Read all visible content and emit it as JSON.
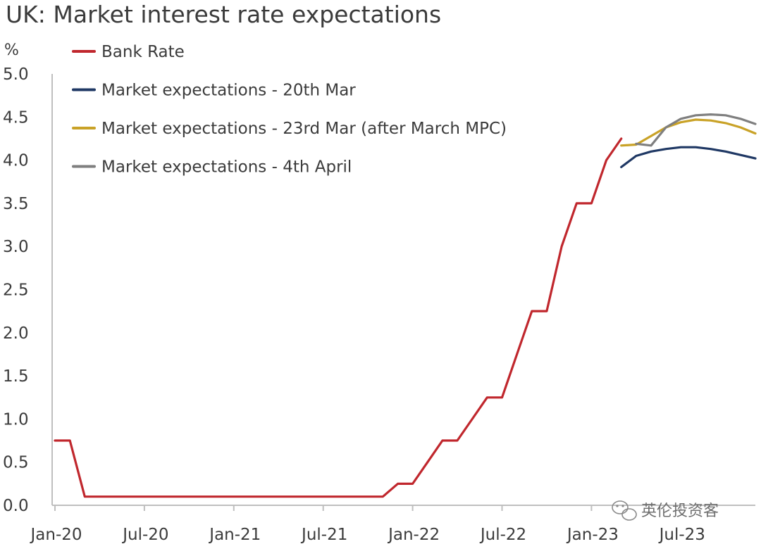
{
  "chart_data": {
    "type": "line",
    "title": "UK: Market interest rate expectations",
    "ylabel": "%",
    "xlabel": "",
    "ylim": [
      0,
      5
    ],
    "y_ticks": [
      "0.0",
      "0.5",
      "1.0",
      "1.5",
      "2.0",
      "2.5",
      "3.0",
      "3.5",
      "4.0",
      "4.5",
      "5.0"
    ],
    "x_ticks": [
      "Jan-20",
      "Jul-20",
      "Jan-21",
      "Jul-21",
      "Jan-22",
      "Jul-22",
      "Jan-23",
      "Jul-23"
    ],
    "grid": false,
    "legend_position": "top-left",
    "series": [
      {
        "name": "Bank Rate",
        "color": "#c0272d",
        "points": [
          [
            "2020-01",
            0.75
          ],
          [
            "2020-02",
            0.75
          ],
          [
            "2020-03",
            0.1
          ],
          [
            "2020-04",
            0.1
          ],
          [
            "2020-05",
            0.1
          ],
          [
            "2020-06",
            0.1
          ],
          [
            "2020-07",
            0.1
          ],
          [
            "2020-08",
            0.1
          ],
          [
            "2020-09",
            0.1
          ],
          [
            "2020-10",
            0.1
          ],
          [
            "2020-11",
            0.1
          ],
          [
            "2020-12",
            0.1
          ],
          [
            "2021-01",
            0.1
          ],
          [
            "2021-02",
            0.1
          ],
          [
            "2021-03",
            0.1
          ],
          [
            "2021-04",
            0.1
          ],
          [
            "2021-05",
            0.1
          ],
          [
            "2021-06",
            0.1
          ],
          [
            "2021-07",
            0.1
          ],
          [
            "2021-08",
            0.1
          ],
          [
            "2021-09",
            0.1
          ],
          [
            "2021-10",
            0.1
          ],
          [
            "2021-11",
            0.1
          ],
          [
            "2021-12",
            0.25
          ],
          [
            "2022-01",
            0.25
          ],
          [
            "2022-02",
            0.5
          ],
          [
            "2022-03",
            0.75
          ],
          [
            "2022-04",
            0.75
          ],
          [
            "2022-05",
            1.0
          ],
          [
            "2022-06",
            1.25
          ],
          [
            "2022-07",
            1.25
          ],
          [
            "2022-08",
            1.75
          ],
          [
            "2022-09",
            2.25
          ],
          [
            "2022-10",
            2.25
          ],
          [
            "2022-11",
            3.0
          ],
          [
            "2022-12",
            3.5
          ],
          [
            "2023-01",
            3.5
          ],
          [
            "2023-02",
            4.0
          ],
          [
            "2023-03",
            4.25
          ]
        ]
      },
      {
        "name": "Market expectations - 20th Mar",
        "color": "#1f3864",
        "points": [
          [
            "2023-03",
            3.92
          ],
          [
            "2023-04",
            4.05
          ],
          [
            "2023-05",
            4.1
          ],
          [
            "2023-06",
            4.13
          ],
          [
            "2023-07",
            4.15
          ],
          [
            "2023-08",
            4.15
          ],
          [
            "2023-09",
            4.13
          ],
          [
            "2023-10",
            4.1
          ],
          [
            "2023-11",
            4.06
          ],
          [
            "2023-12",
            4.02
          ]
        ]
      },
      {
        "name": "Market expectations - 23rd Mar (after March MPC)",
        "color": "#c9a227",
        "points": [
          [
            "2023-03",
            4.17
          ],
          [
            "2023-04",
            4.18
          ],
          [
            "2023-05",
            4.28
          ],
          [
            "2023-06",
            4.38
          ],
          [
            "2023-07",
            4.44
          ],
          [
            "2023-08",
            4.47
          ],
          [
            "2023-09",
            4.46
          ],
          [
            "2023-10",
            4.43
          ],
          [
            "2023-11",
            4.38
          ],
          [
            "2023-12",
            4.31
          ]
        ]
      },
      {
        "name": "Market expectations - 4th April",
        "color": "#7f7f7f",
        "points": [
          [
            "2023-04",
            4.19
          ],
          [
            "2023-05",
            4.17
          ],
          [
            "2023-06",
            4.38
          ],
          [
            "2023-07",
            4.48
          ],
          [
            "2023-08",
            4.52
          ],
          [
            "2023-09",
            4.53
          ],
          [
            "2023-10",
            4.52
          ],
          [
            "2023-11",
            4.48
          ],
          [
            "2023-12",
            4.42
          ]
        ]
      }
    ]
  },
  "watermark": {
    "text": "英伦投资客",
    "icon": "wechat-icon"
  }
}
